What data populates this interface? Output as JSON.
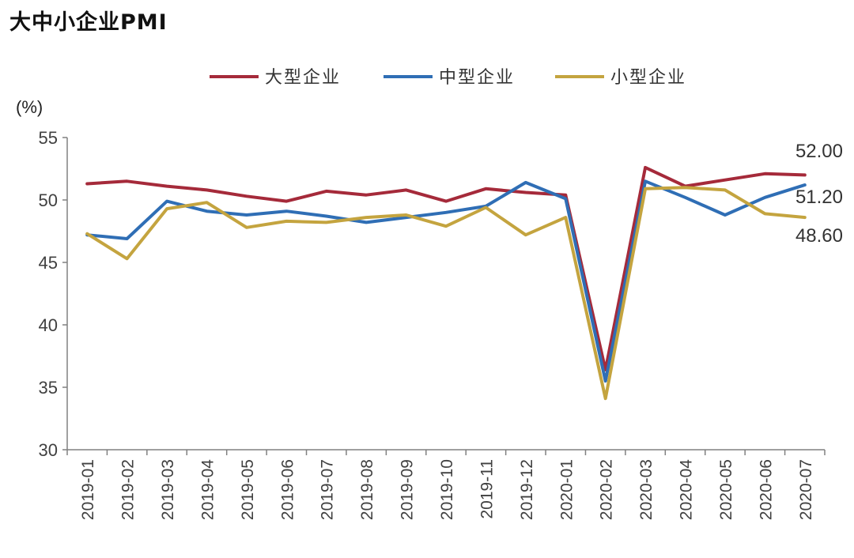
{
  "title": "大中小企业PMI",
  "chart_data": {
    "type": "line",
    "title": "大中小企业PMI",
    "ylabel": "(%)",
    "xlabel": "",
    "ylim": [
      30,
      55
    ],
    "yticks": [
      30,
      35,
      40,
      45,
      50,
      55
    ],
    "grid": false,
    "legend_position": "top-center",
    "categories": [
      "2019-01",
      "2019-02",
      "2019-03",
      "2019-04",
      "2019-05",
      "2019-06",
      "2019-07",
      "2019-08",
      "2019-09",
      "2019-10",
      "2019-11",
      "2019-12",
      "2020-01",
      "2020-02",
      "2020-03",
      "2020-04",
      "2020-05",
      "2020-06",
      "2020-07"
    ],
    "series": [
      {
        "name": "大型企业",
        "color": "#A52A3A",
        "values": [
          51.3,
          51.5,
          51.1,
          50.8,
          50.3,
          49.9,
          50.7,
          50.4,
          50.8,
          49.9,
          50.9,
          50.6,
          50.4,
          36.4,
          52.6,
          51.1,
          51.6,
          52.1,
          52.0
        ],
        "end_label": "52.00"
      },
      {
        "name": "中型企业",
        "color": "#2F6EB5",
        "values": [
          47.2,
          46.9,
          49.9,
          49.1,
          48.8,
          49.1,
          48.7,
          48.2,
          48.6,
          49.0,
          49.5,
          51.4,
          50.1,
          35.5,
          51.5,
          50.2,
          48.8,
          50.2,
          51.2
        ],
        "end_label": "51.20"
      },
      {
        "name": "小型企业",
        "color": "#C4A43F",
        "values": [
          47.3,
          45.3,
          49.3,
          49.8,
          47.8,
          48.3,
          48.2,
          48.6,
          48.8,
          47.9,
          49.4,
          47.2,
          48.6,
          34.1,
          50.9,
          51.0,
          50.8,
          48.9,
          48.6
        ],
        "end_label": "48.60"
      }
    ]
  }
}
